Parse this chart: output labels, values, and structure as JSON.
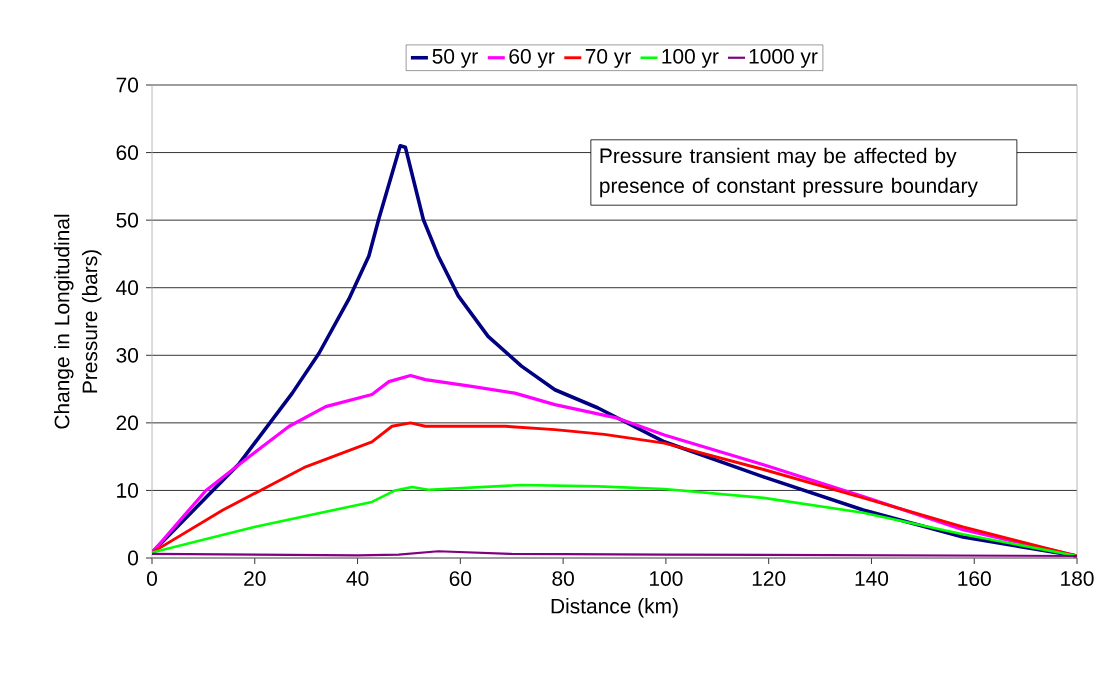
{
  "chart_data": {
    "type": "line",
    "xlabel": "Distance (km)",
    "ylabel": "Change in Longitudinal Pressure (bars)",
    "xlim": [
      0,
      180
    ],
    "ylim": [
      0,
      70
    ],
    "xticks": [
      0,
      20,
      40,
      60,
      80,
      100,
      120,
      140,
      160,
      180
    ],
    "yticks": [
      0,
      10,
      20,
      30,
      40,
      50,
      60,
      70
    ],
    "grid": "y",
    "legend": "top",
    "line_style": "solid",
    "annotations": [
      "Pressure transient may be affected by presence of constant pressure boundary"
    ],
    "series": [
      {
        "name": "50 yr",
        "color": "#000080",
        "x": [
          0,
          17,
          27.3,
          32.5,
          38.3,
          42.2,
          44.1,
          48.3,
          49.3,
          52.8,
          55.7,
          59.6,
          65.4,
          71.9,
          78.4,
          86.8,
          99.7,
          119,
          138.4,
          157.8,
          180
        ],
        "values": [
          0.8,
          14,
          24.4,
          30.3,
          38.3,
          44.7,
          50.1,
          61,
          60.8,
          50.1,
          44.7,
          38.8,
          32.8,
          28.4,
          24.9,
          22.2,
          17.2,
          12,
          7.1,
          3.1,
          0.3
        ]
      },
      {
        "name": "60 yr",
        "color": "#ff00ff",
        "x": [
          0,
          10.5,
          18.9,
          26.7,
          33.8,
          42.8,
          46.1,
          50.3,
          53.2,
          62.2,
          70.6,
          78.4,
          90.6,
          99.7,
          119,
          138.4,
          157.8,
          180
        ],
        "values": [
          0.8,
          10,
          15,
          19.5,
          22.4,
          24.2,
          26.1,
          27,
          26.4,
          25.4,
          24.4,
          22.7,
          20.7,
          18.2,
          13.8,
          9.1,
          4.2,
          0.3
        ]
      },
      {
        "name": "70 yr",
        "color": "#ff0000",
        "x": [
          0,
          13.8,
          29.9,
          42.8,
          46.7,
          50.3,
          53.2,
          68.7,
          78.4,
          88,
          99.7,
          119,
          138.4,
          157.8,
          180
        ],
        "values": [
          0.8,
          7.1,
          13.5,
          17.2,
          19.5,
          20,
          19.5,
          19.5,
          19,
          18.3,
          17,
          13.1,
          8.9,
          4.6,
          0.3
        ]
      },
      {
        "name": "100 yr",
        "color": "#00ff00",
        "x": [
          0,
          19.9,
          42.8,
          47.3,
          50.6,
          53.8,
          71.9,
          86.8,
          99.7,
          119,
          138.4,
          157.8,
          180
        ],
        "values": [
          0.8,
          4.6,
          8.3,
          10,
          10.5,
          10.1,
          10.8,
          10.6,
          10.2,
          8.9,
          6.7,
          3.5,
          0.3
        ]
      },
      {
        "name": "1000 yr",
        "color": "#800080",
        "x": [
          0,
          40,
          48,
          55.7,
          70,
          100,
          180
        ],
        "values": [
          0.6,
          0.4,
          0.5,
          1.0,
          0.6,
          0.5,
          0.3
        ]
      }
    ]
  }
}
